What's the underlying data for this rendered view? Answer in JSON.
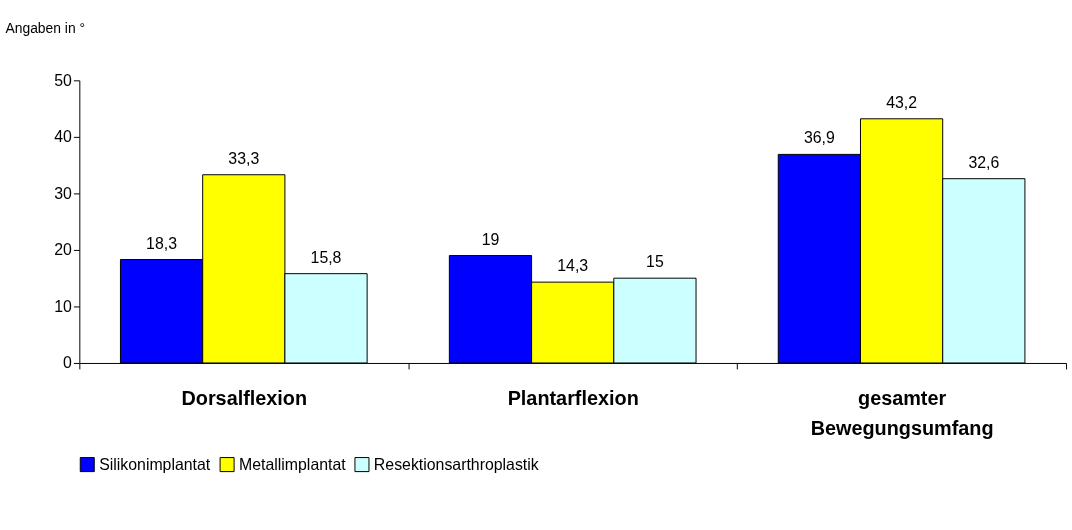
{
  "chart_data": {
    "type": "bar",
    "ylabel": "Angaben in °",
    "categories": [
      "Dorsalflexion",
      "Plantarflexion",
      "gesamter\nBewegungsumfang"
    ],
    "series": [
      {
        "name": "Silikonimplantat",
        "color": "#0000ff",
        "values": [
          18.3,
          19,
          36.9
        ],
        "value_labels": [
          "18,3",
          "19",
          "36,9"
        ]
      },
      {
        "name": "Metallimplantat",
        "color": "#ffff00",
        "values": [
          33.3,
          14.3,
          43.2
        ],
        "value_labels": [
          "33,3",
          "14,3",
          "43,2"
        ]
      },
      {
        "name": "Resektionsarthroplastik",
        "color": "#ccffff",
        "values": [
          15.8,
          15,
          32.6
        ],
        "value_labels": [
          "15,8",
          "15",
          "32,6"
        ]
      }
    ],
    "ylim": [
      0,
      50
    ],
    "yticks": [
      0,
      10,
      20,
      30,
      40,
      50
    ],
    "grid": false,
    "legend": "bottom"
  }
}
